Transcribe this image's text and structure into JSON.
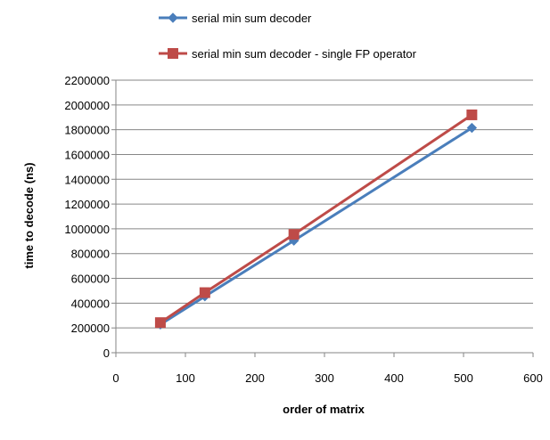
{
  "chart_data": {
    "type": "line",
    "title": "",
    "xlabel": "order of matrix",
    "ylabel": "time to decode (ns)",
    "xlim": [
      0,
      600
    ],
    "ylim": [
      0,
      2200000
    ],
    "xticks": [
      0,
      100,
      200,
      300,
      400,
      500,
      600
    ],
    "yticks": [
      0,
      200000,
      400000,
      600000,
      800000,
      1000000,
      1200000,
      1400000,
      1600000,
      1800000,
      2000000,
      2200000
    ],
    "grid": "horizontal",
    "legend_position": "top",
    "series": [
      {
        "name": "serial min sum decoder",
        "color": "#4a7ebb",
        "marker": "diamond",
        "x": [
          64,
          128,
          256,
          512
        ],
        "y": [
          228000,
          455000,
          905000,
          1815000
        ]
      },
      {
        "name": "serial min sum decoder  - single FP operator",
        "color": "#be4b48",
        "marker": "square",
        "x": [
          64,
          128,
          256,
          512
        ],
        "y": [
          243000,
          485000,
          955000,
          1920000
        ]
      }
    ]
  }
}
